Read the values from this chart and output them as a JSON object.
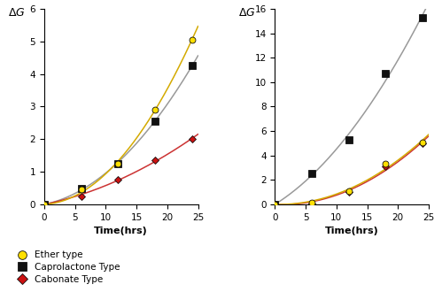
{
  "left": {
    "ether_x": [
      0,
      6,
      12,
      18,
      24
    ],
    "ether_y": [
      0,
      0.45,
      1.25,
      2.9,
      5.05
    ],
    "capro_x": [
      0,
      6,
      12,
      18,
      24
    ],
    "capro_y": [
      0,
      0.5,
      1.25,
      2.55,
      4.25
    ],
    "carbonate_x": [
      0,
      6,
      12,
      18,
      24
    ],
    "carbonate_y": [
      0,
      0.25,
      0.75,
      1.35,
      2.0
    ],
    "ylim": [
      0,
      6
    ],
    "yticks": [
      0,
      1,
      2,
      3,
      4,
      5,
      6
    ]
  },
  "right": {
    "capro_x": [
      0,
      6,
      12,
      18,
      24
    ],
    "capro_y": [
      0,
      2.5,
      5.25,
      10.7,
      15.3
    ],
    "ether_x": [
      0,
      6,
      12,
      18,
      24
    ],
    "ether_y": [
      0,
      0.15,
      1.05,
      3.3,
      5.1
    ],
    "carbonate_x": [
      0,
      6,
      12,
      18,
      24
    ],
    "carbonate_y": [
      0,
      0.1,
      1.0,
      3.1,
      5.0
    ],
    "ylim": [
      0,
      16
    ],
    "yticks": [
      0,
      2,
      4,
      6,
      8,
      10,
      12,
      14,
      16
    ]
  },
  "marker_colors": {
    "ether": "#FFE000",
    "capro": "#111111",
    "carbonate": "#CC1111"
  },
  "line_colors": {
    "ether": "#D4AA00",
    "capro": "#999999",
    "carbonate": "#CC3333"
  },
  "xlabel": "Time(hrs)",
  "ylabel": "$\\Delta G$",
  "xticks": [
    0,
    5,
    10,
    15,
    20,
    25
  ],
  "legend": {
    "ether_label": "Ether type",
    "capro_label": "Caprolactone Type",
    "carbonate_label": "Cabonate Type"
  }
}
